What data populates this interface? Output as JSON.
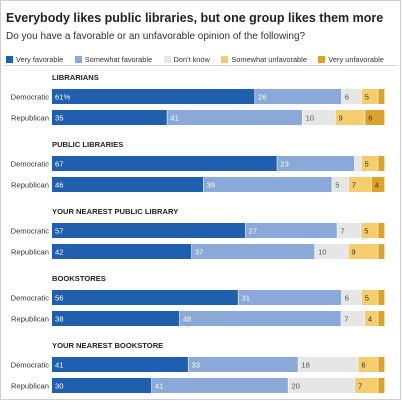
{
  "title": "Everybody likes public libraries, but one group likes them more",
  "subtitle": "Do you have a favorable or an unfavorable opinion of the following?",
  "legend": [
    {
      "label": "Very favorable",
      "color": "#1f5fad"
    },
    {
      "label": "Somewhat favorable",
      "color": "#8aa8d8"
    },
    {
      "label": "Don't know",
      "color": "#e6e6e6"
    },
    {
      "label": "Somewhat unfavorable",
      "color": "#f5cd6e"
    },
    {
      "label": "Very unfavorable",
      "color": "#dca32a"
    }
  ],
  "chart_data": {
    "type": "bar",
    "stacked": true,
    "orientation": "horizontal",
    "series_names": [
      "Very favorable",
      "Somewhat favorable",
      "Don't know",
      "Somewhat unfavorable",
      "Very unfavorable"
    ],
    "groups": [
      {
        "title": "LIBRARIANS",
        "rows": [
          {
            "label": "Democratic",
            "values": [
              61,
              26,
              6,
              5,
              2
            ],
            "labels": [
              "61%",
              "26",
              "6",
              "5",
              ""
            ]
          },
          {
            "label": "Republican",
            "values": [
              35,
              41,
              10,
              9,
              6
            ],
            "labels": [
              "35",
              "41",
              "10",
              "9",
              "6"
            ]
          }
        ]
      },
      {
        "title": "PUBLIC LIBRARIES",
        "rows": [
          {
            "label": "Democratic",
            "values": [
              67,
              23,
              2,
              5,
              2
            ],
            "labels": [
              "67",
              "23",
              "",
              "5",
              ""
            ]
          },
          {
            "label": "Republican",
            "values": [
              46,
              39,
              5,
              7,
              4
            ],
            "labels": [
              "46",
              "39",
              "5",
              "7",
              "4"
            ]
          }
        ]
      },
      {
        "title": "YOUR NEAREST PUBLIC LIBRARY",
        "rows": [
          {
            "label": "Democratic",
            "values": [
              57,
              27,
              7,
              5,
              2
            ],
            "labels": [
              "57",
              "27",
              "7",
              "5",
              ""
            ]
          },
          {
            "label": "Republican",
            "values": [
              42,
              37,
              10,
              9,
              2
            ],
            "labels": [
              "42",
              "37",
              "10",
              "9",
              ""
            ]
          }
        ]
      },
      {
        "title": "BOOKSTORES",
        "rows": [
          {
            "label": "Democratic",
            "values": [
              56,
              31,
              6,
              5,
              2
            ],
            "labels": [
              "56",
              "31",
              "6",
              "5",
              ""
            ]
          },
          {
            "label": "Republican",
            "values": [
              38,
              48,
              7,
              4,
              2
            ],
            "labels": [
              "38",
              "48",
              "7",
              "4",
              ""
            ]
          }
        ]
      },
      {
        "title": "YOUR NEAREST BOOKSTORE",
        "rows": [
          {
            "label": "Democratic",
            "values": [
              41,
              33,
              18,
              6,
              2
            ],
            "labels": [
              "41",
              "33",
              "18",
              "6",
              ""
            ]
          },
          {
            "label": "Republican",
            "values": [
              30,
              41,
              20,
              7,
              2
            ],
            "labels": [
              "30",
              "41",
              "20",
              "7",
              ""
            ]
          }
        ]
      }
    ]
  }
}
